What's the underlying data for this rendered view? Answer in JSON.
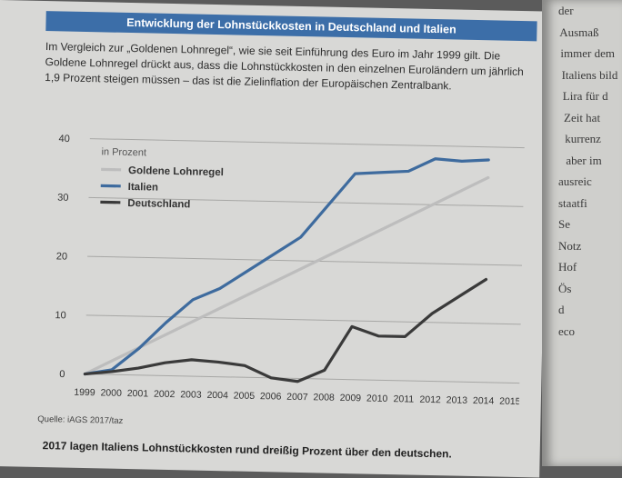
{
  "header": {
    "title": "Entwicklung der Lohnstückkosten in Deutschland und Italien"
  },
  "intro": {
    "line1": "Im Vergleich zur „Goldenen Lohnregel“, wie sie seit Einführung des Euro im Jahr 1999 gilt. Die",
    "line2": "Goldene Lohnregel drückt aus, dass die Lohnstückkosten in den einzelnen Euroländern um jährlich",
    "line3": "1,9 Prozent steigen müssen – das ist die Zielinflation der Europäischen Zentralbank."
  },
  "chart_data": {
    "type": "line",
    "unit_label": "in Prozent",
    "x": [
      1999,
      2000,
      2001,
      2002,
      2003,
      2004,
      2005,
      2006,
      2007,
      2008,
      2009,
      2010,
      2011,
      2012,
      2013,
      2014,
      2015
    ],
    "yticks": [
      0,
      10,
      20,
      30,
      40
    ],
    "ylim": [
      -1,
      41
    ],
    "xlim": [
      1999,
      2015
    ],
    "grid": true,
    "legend_position": "top-left",
    "series": [
      {
        "name": "Goldene Lohnregel",
        "color": "#bdbdbd",
        "x": [
          1999,
          2014
        ],
        "values": [
          0,
          34.8
        ]
      },
      {
        "name": "Italien",
        "color": "#3e6b9e",
        "x": [
          1999,
          2000,
          2001,
          2002,
          2003,
          2004,
          2005,
          2006,
          2007,
          2008,
          2009,
          2010,
          2011,
          2012,
          2013,
          2014
        ],
        "values": [
          0,
          0.8,
          4.5,
          9,
          13,
          15,
          18,
          21,
          24,
          29.5,
          35,
          35.3,
          35.6,
          37.8,
          37.5,
          37.8
        ]
      },
      {
        "name": "Deutschland",
        "color": "#3a3a3a",
        "x": [
          1999,
          2000,
          2001,
          2002,
          2003,
          2004,
          2005,
          2006,
          2007,
          2008,
          2009,
          2010,
          2011,
          2012,
          2013,
          2014
        ],
        "values": [
          0,
          0.5,
          1.2,
          2.2,
          2.8,
          2.5,
          2,
          0,
          -0.5,
          1.5,
          9,
          7.5,
          7.5,
          11.5,
          14.5,
          17.5
        ]
      }
    ]
  },
  "footer": {
    "source": "Quelle: iAGS 2017/taz",
    "caption": "2017 lagen Italiens Lohnstückkosten rund dreißig Prozent über den deutschen."
  },
  "next_page": {
    "fragments": [
      "der",
      "Ausmaß",
      "immer dem",
      "Italiens bild",
      "Lira für d",
      "Zeit hat",
      "kurrenz",
      "aber im",
      "ausreic",
      "staatfi",
      "Se",
      "Notz",
      "Hof",
      "Ös",
      "d",
      "eco"
    ]
  }
}
